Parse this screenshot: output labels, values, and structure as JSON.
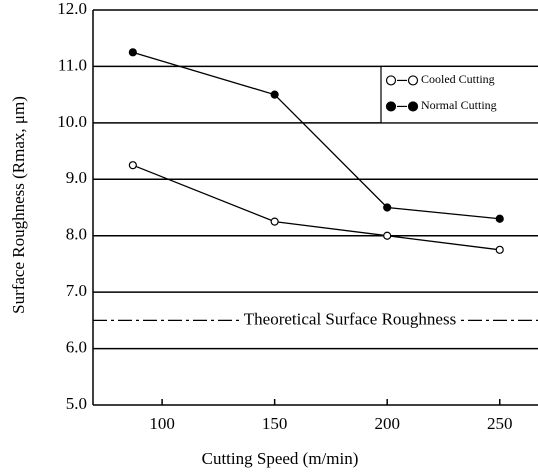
{
  "chart_data": {
    "type": "line",
    "x_label": "Cutting Speed (m/min)",
    "y_label": "Surface Roughness (Rmax, μm)",
    "x": [
      87,
      150,
      200,
      250
    ],
    "series": [
      {
        "name": "Cooled Cutting",
        "color": "#000000",
        "marker": "open",
        "values": [
          9.25,
          8.25,
          8.0,
          7.75
        ]
      },
      {
        "name": "Normal Cutting",
        "color": "#000000",
        "marker": "filled",
        "values": [
          11.25,
          10.5,
          8.5,
          8.3
        ]
      }
    ],
    "reference_line": {
      "label": "Theoretical Surface Roughness",
      "value": 6.5
    },
    "xlim": [
      69.3,
      267
    ],
    "ylim": [
      5.0,
      12.0
    ],
    "xticks": [
      100,
      150,
      200,
      250
    ],
    "yticks": [
      {
        "value": 5.0,
        "label": "5.0"
      },
      {
        "value": 6.0,
        "label": "6.0"
      },
      {
        "value": 7.0,
        "label": "7.0"
      },
      {
        "value": 8.0,
        "label": "8.0"
      },
      {
        "value": 9.0,
        "label": "9.0"
      },
      {
        "value": 10.0,
        "label": "10.0"
      },
      {
        "value": 11.0,
        "label": "11.0"
      },
      {
        "value": 12.0,
        "label": "12.0"
      }
    ],
    "grid": true,
    "legend": "upper right"
  }
}
